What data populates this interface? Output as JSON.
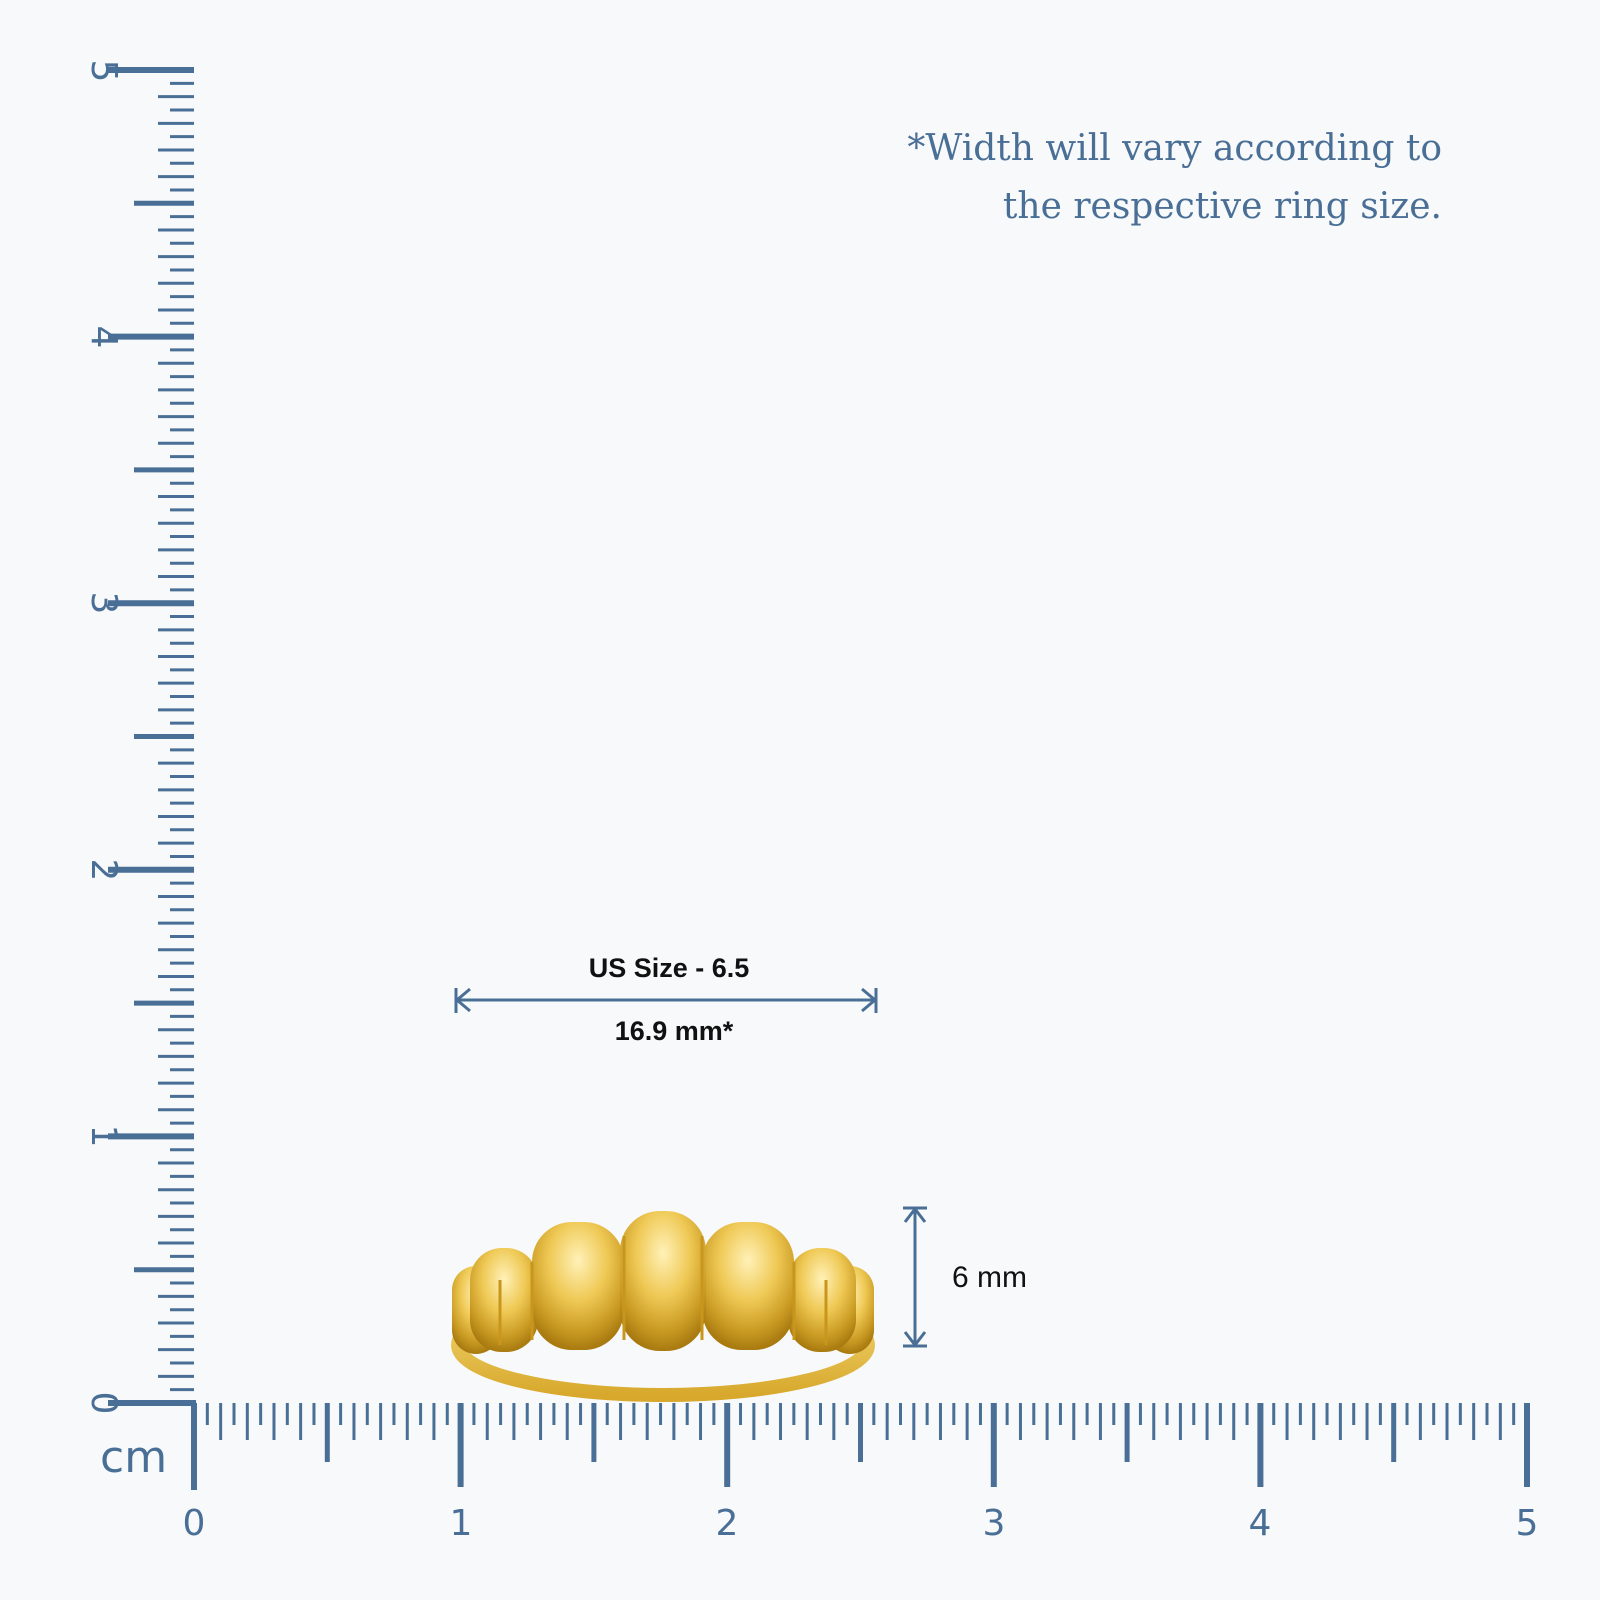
{
  "ruler": {
    "unit": "cm",
    "x_labels": [
      "0",
      "1",
      "2",
      "3",
      "4",
      "5"
    ],
    "y_labels": [
      "0",
      "1",
      "2",
      "3",
      "4",
      "5"
    ],
    "color": "#4a6f96"
  },
  "note": {
    "line1": "*Width will vary according to",
    "line2": "the respective ring size."
  },
  "width_dimension": {
    "size_label": "US Size - 6.5",
    "value_label": "16.9 mm*"
  },
  "height_dimension": {
    "value_label": "6 mm"
  },
  "ring": {
    "metal_color": "#e8c24a"
  }
}
